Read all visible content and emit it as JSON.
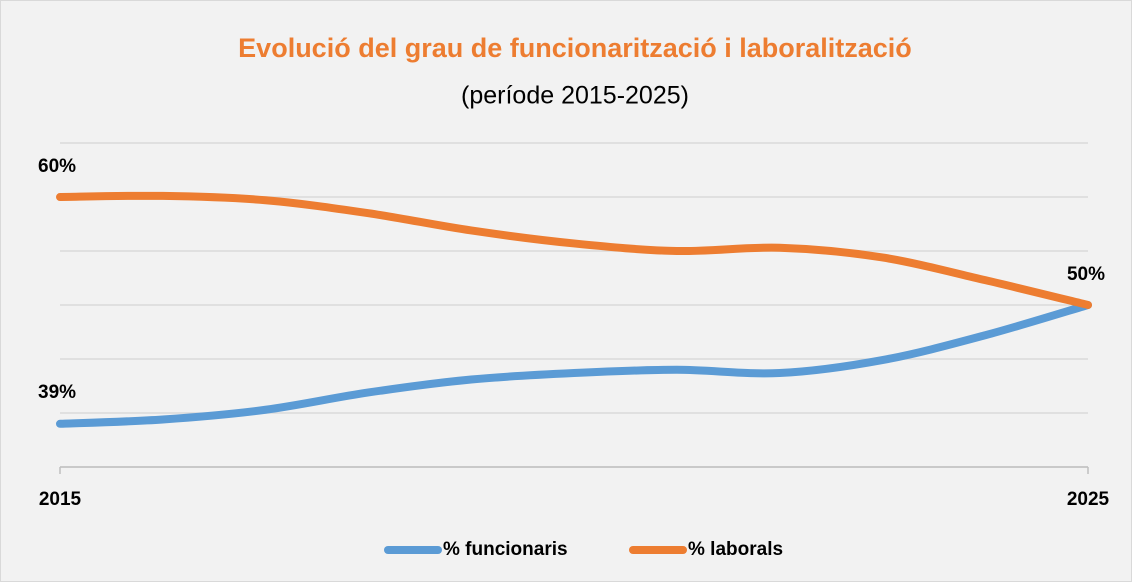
{
  "chart_data": {
    "type": "line",
    "title": "Evolució del grau de funcionarització i laboralització",
    "subtitle": "(període 2015-2025)",
    "categories": [
      "2015",
      null,
      null,
      null,
      null,
      null,
      null,
      null,
      null,
      null,
      "2025"
    ],
    "series": [
      {
        "name": "% funcionaris",
        "color": "#5b9bd5",
        "values": [
          39,
          39.4,
          40.3,
          41.9,
          43.1,
          43.7,
          44,
          43.7,
          44.9,
          47.2,
          50
        ]
      },
      {
        "name": "% laborals",
        "color": "#ed7d31",
        "values": [
          60,
          60.1,
          59.7,
          58.5,
          56.9,
          55.7,
          55,
          55.3,
          54.4,
          52.3,
          50
        ],
        "value_labels": [
          "60%",
          null,
          null,
          null,
          null,
          null,
          null,
          null,
          null,
          null,
          "50%"
        ]
      }
    ],
    "blue_labels": {
      "0": "39%"
    },
    "ylim": [
      35,
      65
    ],
    "yticks": [
      35,
      40,
      45,
      50,
      55,
      60,
      65
    ],
    "grid": true
  }
}
